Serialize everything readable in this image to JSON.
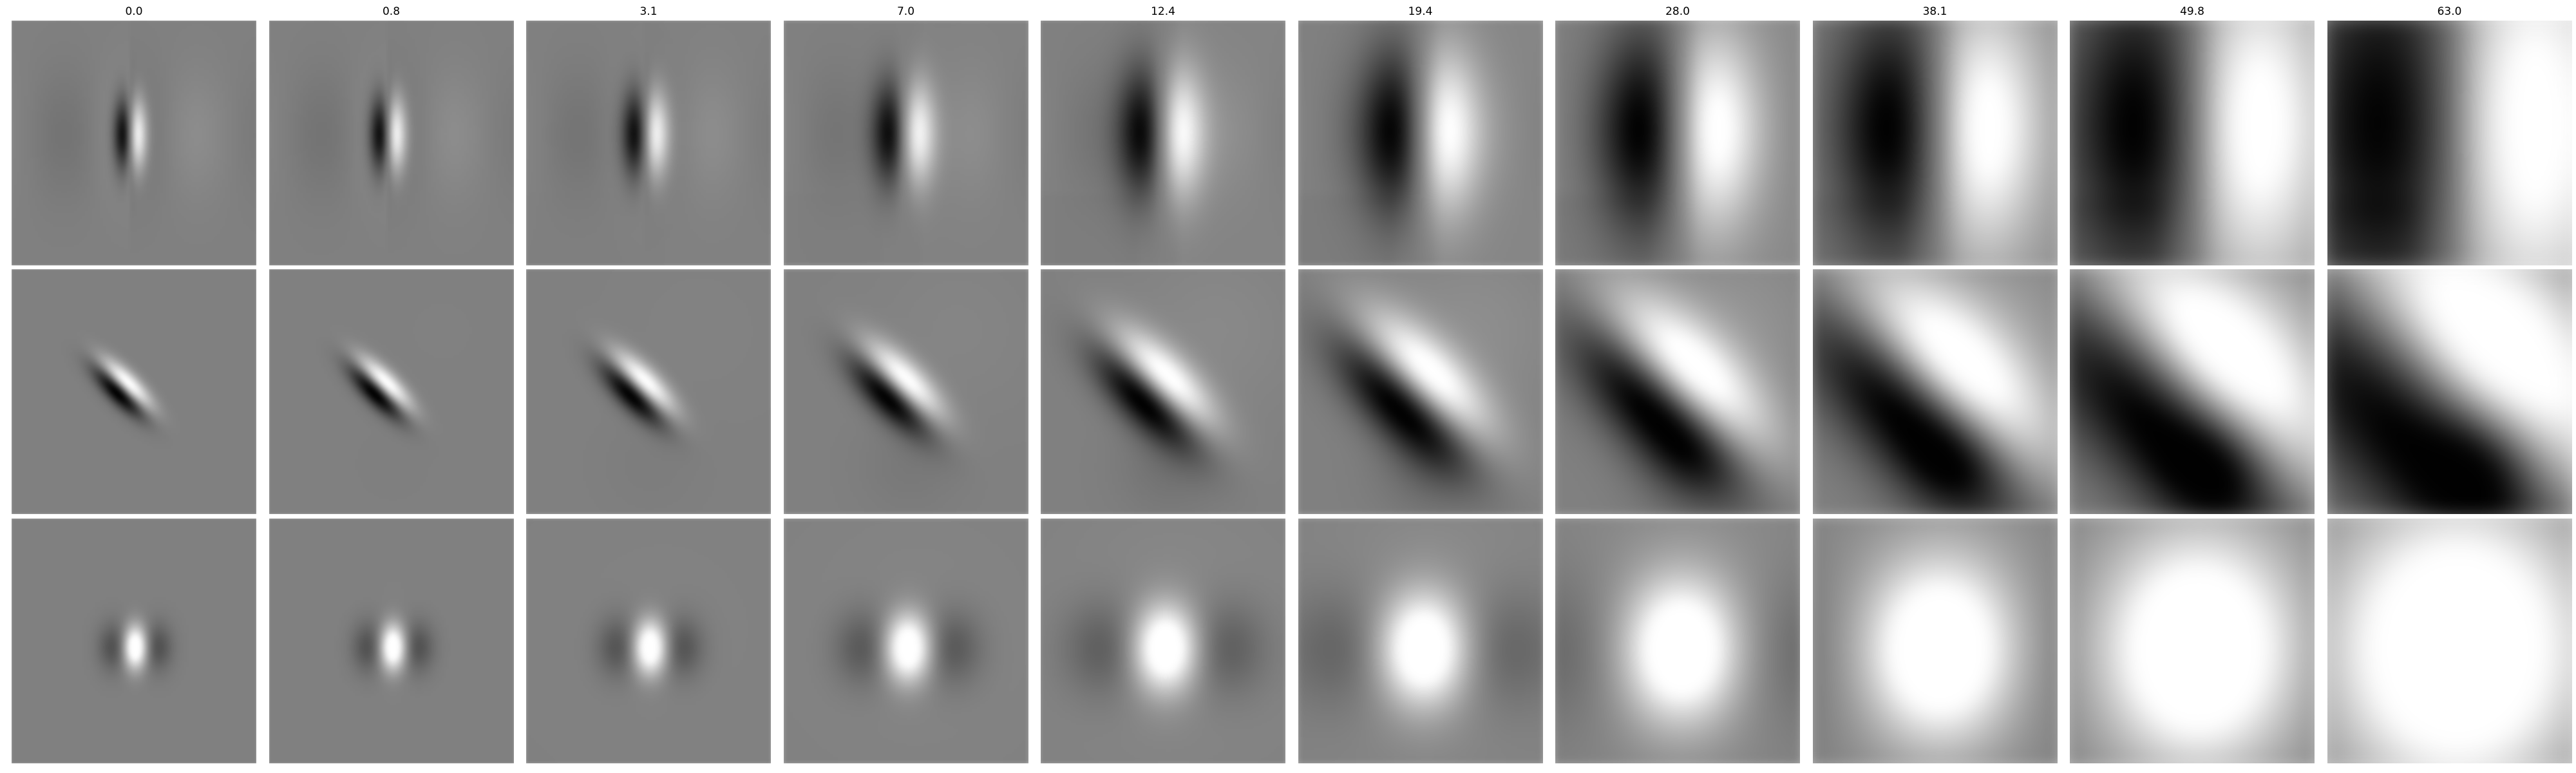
{
  "columns": [
    {
      "label": "0.0",
      "blur": 0
    },
    {
      "label": "0.8",
      "blur": 0.8
    },
    {
      "label": "3.1",
      "blur": 3.1
    },
    {
      "label": "7.0",
      "blur": 7.0
    },
    {
      "label": "12.4",
      "blur": 12.4
    },
    {
      "label": "19.4",
      "blur": 19.4
    },
    {
      "label": "28.0",
      "blur": 28.0
    },
    {
      "label": "38.1",
      "blur": 38.1
    },
    {
      "label": "49.8",
      "blur": 49.8
    },
    {
      "label": "63.0",
      "blur": 63.0
    }
  ],
  "rows": [
    {
      "name": "vertical-odd-pattern"
    },
    {
      "name": "diagonal-odd-pattern"
    },
    {
      "name": "even-blob-pattern"
    }
  ],
  "colors": {
    "background": "#ffffff",
    "neutral_gray": "#808080",
    "dark": "#000000",
    "light": "#ffffff"
  }
}
